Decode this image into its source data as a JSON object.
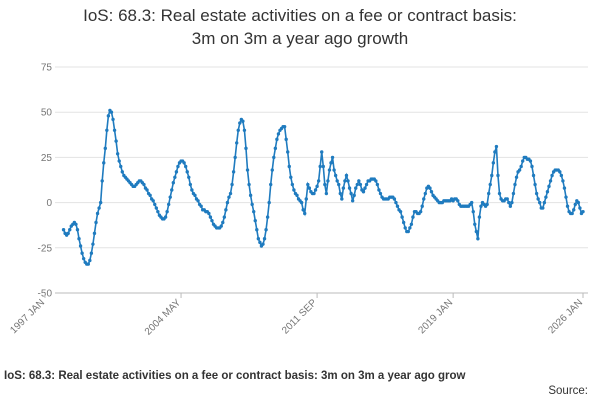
{
  "chart_data": {
    "type": "line",
    "title_lines": [
      "IoS: 68.3: Real estate activities on a fee or contract basis:",
      "3m on 3m a year ago growth"
    ],
    "footer": "IoS: 68.3: Real estate activities on a fee or contract basis: 3m on 3m a year ago grow",
    "source": "Source:",
    "color": "#1f7bbf",
    "ylim": [
      -50,
      75
    ],
    "yticks": [
      -50,
      -25,
      0,
      25,
      50,
      75
    ],
    "grid": true,
    "categories": [
      "1997 JAN",
      null,
      null,
      null,
      null,
      null,
      null,
      null,
      null,
      null,
      null,
      null,
      null,
      null,
      null,
      null,
      null,
      null,
      null,
      null,
      null,
      null,
      null,
      null,
      null,
      null,
      null,
      null,
      null,
      null,
      null,
      null,
      null,
      null,
      null,
      null,
      null,
      null,
      null,
      null,
      null,
      null,
      null,
      null,
      null,
      null,
      null,
      null,
      null,
      null,
      null,
      null,
      null,
      null,
      null,
      null,
      null,
      null,
      null,
      null,
      null,
      null,
      null,
      null,
      null,
      null,
      null,
      null,
      null,
      null,
      null,
      null,
      null,
      null,
      null,
      null,
      null,
      null,
      null,
      null,
      null,
      null,
      null,
      null,
      null,
      null,
      null,
      null,
      "2004 MAY",
      null,
      null,
      null,
      null,
      null,
      null,
      null,
      null,
      null,
      null,
      null,
      null,
      null,
      null,
      null,
      null,
      null,
      null,
      null,
      null,
      null,
      null,
      null,
      null,
      null,
      null,
      null,
      null,
      null,
      null,
      null,
      null,
      null,
      null,
      null,
      null,
      null,
      null,
      null,
      null,
      null,
      null,
      null,
      null,
      null,
      null,
      null,
      null,
      null,
      null,
      null,
      null,
      null,
      null,
      null,
      null,
      null,
      null,
      null,
      null,
      null,
      null,
      null,
      null,
      null,
      null,
      null,
      null,
      null,
      null,
      null,
      null,
      null,
      null,
      null,
      null,
      null,
      null,
      null,
      null,
      null,
      null,
      null,
      null,
      null,
      null,
      null,
      "2011 SEP",
      null,
      null,
      null,
      null,
      null,
      null,
      null,
      null,
      null,
      null,
      null,
      null,
      null,
      null,
      null,
      null,
      null,
      null,
      null,
      null,
      null,
      null,
      null,
      null,
      null,
      null,
      null,
      null,
      null,
      null,
      null,
      null,
      null,
      null,
      null,
      null,
      null,
      null,
      null,
      null,
      null,
      null,
      null,
      null,
      null,
      null,
      null,
      null,
      null,
      null,
      null,
      null,
      null,
      null,
      null,
      null,
      null,
      null,
      null,
      null,
      null,
      null,
      null,
      null,
      null,
      null,
      null,
      null,
      null,
      null,
      null,
      null,
      null,
      null,
      null,
      null,
      null,
      null,
      null,
      null,
      null,
      null,
      null,
      null,
      null,
      null,
      null,
      "2019 JAN",
      null,
      null,
      null,
      null,
      null,
      null,
      null,
      null,
      null,
      null,
      null,
      null,
      null,
      null,
      null,
      null,
      null,
      null,
      null,
      null,
      null,
      null,
      null,
      null,
      null,
      null,
      null,
      null,
      null,
      null,
      null,
      null,
      null,
      null,
      null,
      null,
      null,
      null,
      null,
      null,
      null,
      null,
      null,
      null,
      null,
      null,
      null,
      null,
      null,
      null,
      null,
      null,
      null,
      null,
      null,
      null,
      null,
      null,
      null,
      null,
      null,
      null,
      null,
      null,
      null,
      null,
      null,
      null,
      null,
      null,
      null,
      null,
      null,
      null,
      null,
      null,
      null,
      null,
      null,
      null,
      null,
      null,
      null,
      "2026 JAN"
    ],
    "values": [
      null,
      null,
      null,
      null,
      null,
      null,
      null,
      null,
      null,
      null,
      null,
      null,
      -15,
      -17,
      -18,
      -17,
      -15,
      -13,
      -12,
      -11,
      -12,
      -15,
      -20,
      -24,
      -28,
      -31,
      -33,
      -34,
      -34,
      -32,
      -28,
      -23,
      -17,
      -11,
      -6,
      -3,
      0,
      12,
      22,
      30,
      40,
      48,
      51,
      50,
      46,
      40,
      34,
      27,
      23,
      20,
      17,
      15,
      14,
      13,
      12,
      11,
      10,
      9,
      9,
      10,
      11,
      12,
      12,
      11,
      10,
      8,
      7,
      5,
      4,
      2,
      1,
      -1,
      -3,
      -5,
      -7,
      -8,
      -9,
      -9,
      -8,
      -5,
      -1,
      3,
      7,
      11,
      14,
      17,
      20,
      22,
      23,
      23,
      22,
      20,
      17,
      14,
      10,
      7,
      5,
      4,
      2,
      1,
      -1,
      -2,
      -4,
      -4,
      -5,
      -5,
      -6,
      -8,
      -10,
      -12,
      -13,
      -14,
      -14,
      -14,
      -13,
      -11,
      -8,
      -4,
      0,
      3,
      5,
      10,
      17,
      25,
      33,
      40,
      44,
      46,
      45,
      40,
      30,
      18,
      10,
      4,
      -1,
      -5,
      -10,
      -15,
      -20,
      -22,
      -24,
      -23,
      -20,
      -15,
      -8,
      0,
      10,
      18,
      25,
      30,
      35,
      38,
      40,
      41,
      42,
      42,
      35,
      28,
      20,
      14,
      10,
      7,
      5,
      4,
      2,
      1,
      0,
      -4,
      -6,
      2,
      10,
      8,
      6,
      5,
      5,
      7,
      9,
      12,
      20,
      28,
      20,
      10,
      5,
      12,
      18,
      22,
      25,
      18,
      15,
      12,
      10,
      5,
      2,
      8,
      12,
      15,
      12,
      8,
      5,
      1,
      4,
      8,
      10,
      12,
      10,
      7,
      6,
      8,
      10,
      12,
      12,
      13,
      13,
      13,
      12,
      10,
      7,
      5,
      3,
      2,
      2,
      2,
      2,
      3,
      3,
      3,
      2,
      0,
      -2,
      -4,
      -5,
      -8,
      -11,
      -14,
      -16,
      -16,
      -14,
      -12,
      -8,
      -5,
      -5,
      -6,
      -6,
      -5,
      -2,
      2,
      5,
      8,
      9,
      8,
      6,
      4,
      3,
      2,
      1,
      0,
      0,
      0,
      1,
      1,
      1,
      1,
      1,
      2,
      1,
      2,
      2,
      1,
      -1,
      -2,
      -2,
      -2,
      -2,
      -2,
      -2,
      -1,
      0,
      -5,
      -12,
      -16,
      -20,
      -8,
      -2,
      0,
      -1,
      -2,
      -1,
      5,
      10,
      15,
      22,
      28,
      31,
      15,
      5,
      2,
      1,
      1,
      2,
      2,
      0,
      -2,
      0,
      5,
      10,
      14,
      17,
      18,
      20,
      23,
      25,
      25,
      24,
      24,
      23,
      20,
      15,
      10,
      5,
      2,
      0,
      -3,
      -3,
      0,
      3,
      6,
      9,
      12,
      15,
      17,
      18,
      18,
      18,
      17,
      15,
      12,
      8,
      3,
      -2,
      -5,
      -6,
      -6,
      -4,
      -1,
      1,
      0,
      -3,
      -6,
      -5
    ]
  }
}
